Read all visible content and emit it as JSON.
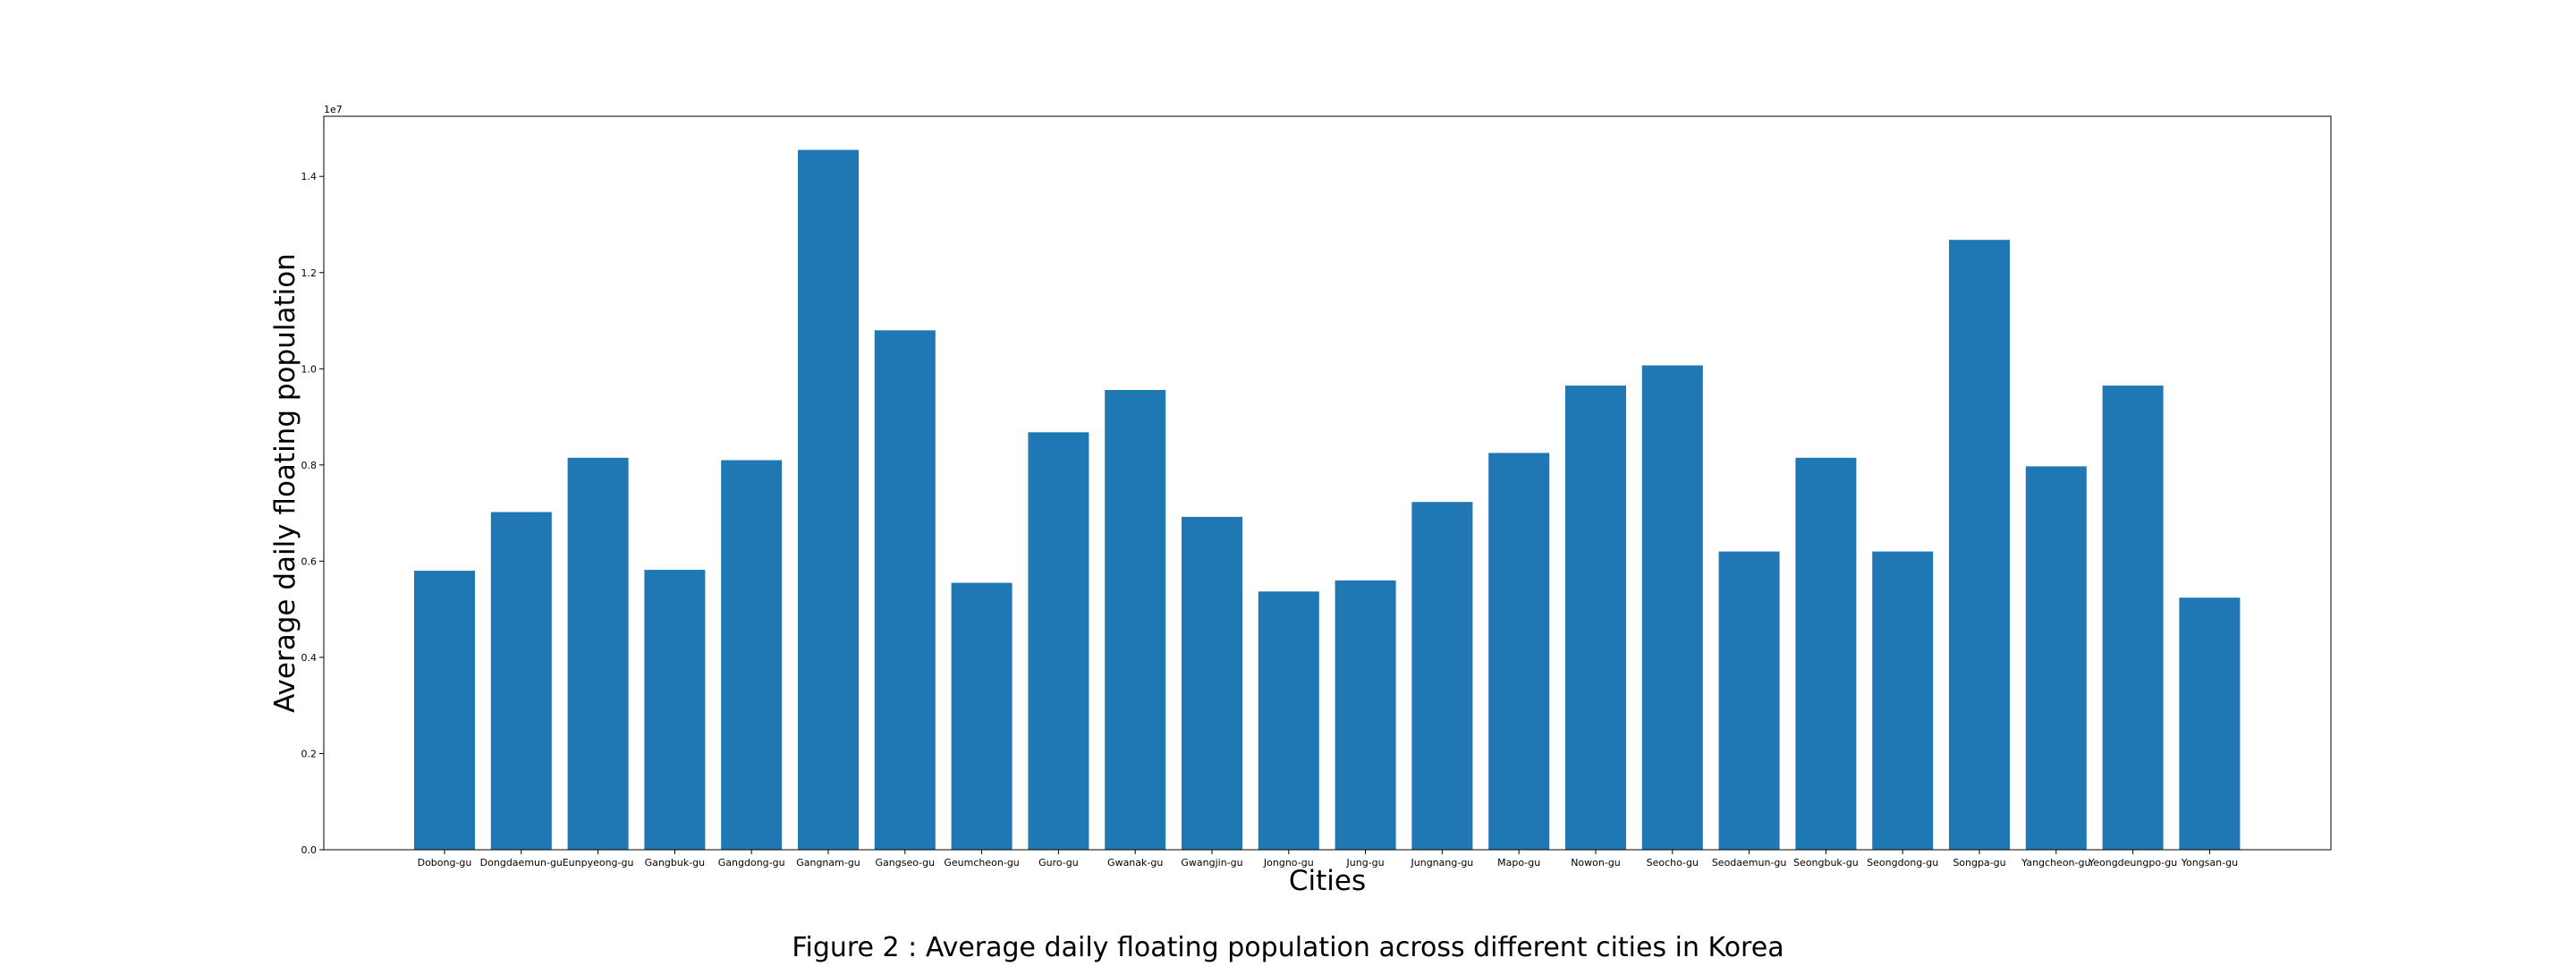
{
  "caption": "Figure 2 : Average daily floating population across different cities in Korea",
  "chart_data": {
    "type": "bar",
    "xlabel": "Cities",
    "ylabel": "Average daily floating population",
    "y_scale_note": "1e7",
    "ylim": [
      0,
      15250000
    ],
    "yticks": [
      0,
      2000000,
      4000000,
      6000000,
      8000000,
      10000000,
      12000000,
      14000000
    ],
    "ytick_labels": [
      "0.0",
      "0.2",
      "0.4",
      "0.6",
      "0.8",
      "1.0",
      "1.2",
      "1.4"
    ],
    "grid": false,
    "bar_color": "#1f77b4",
    "categories": [
      "Dobong-gu",
      "Dongdaemun-gu",
      "Eunpyeong-gu",
      "Gangbuk-gu",
      "Gangdong-gu",
      "Gangnam-gu",
      "Gangseo-gu",
      "Geumcheon-gu",
      "Guro-gu",
      "Gwanak-gu",
      "Gwangjin-gu",
      "Jongno-gu",
      "Jung-gu",
      "Jungnang-gu",
      "Mapo-gu",
      "Nowon-gu",
      "Seocho-gu",
      "Seodaemun-gu",
      "Seongbuk-gu",
      "Seongdong-gu",
      "Songpa-gu",
      "Yangcheon-gu",
      "Yeongdeungpo-gu",
      "Yongsan-gu"
    ],
    "values": [
      5800000,
      7020000,
      8150000,
      5820000,
      8100000,
      14550000,
      10800000,
      5550000,
      8680000,
      9560000,
      6920000,
      5370000,
      5600000,
      7230000,
      8250000,
      9650000,
      10070000,
      6200000,
      8150000,
      6200000,
      12680000,
      7970000,
      9650000,
      5240000
    ]
  }
}
